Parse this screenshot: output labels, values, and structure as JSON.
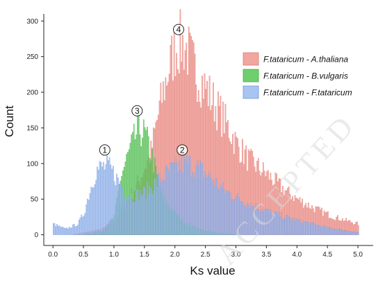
{
  "chart_data": {
    "type": "bar",
    "title": "",
    "xlabel": "Ks value",
    "ylabel": "Count",
    "xlim": [
      -0.15,
      5.25
    ],
    "ylim": [
      -15,
      310
    ],
    "xticks": [
      0.0,
      0.5,
      1.0,
      1.5,
      2.0,
      2.5,
      3.0,
      3.5,
      4.0,
      4.5,
      5.0
    ],
    "xtick_labels": [
      "0.0",
      "0.5",
      "1.0",
      "1.5",
      "2.0",
      "2.5",
      "3.0",
      "3.5",
      "4.0",
      "4.5",
      "5.0"
    ],
    "yticks": [
      0,
      50,
      100,
      150,
      200,
      250,
      300
    ],
    "ytick_labels": [
      "0",
      "50",
      "100",
      "150",
      "200",
      "250",
      "300"
    ],
    "grid": false,
    "legend_placement": "top-right",
    "bin_width": 0.02,
    "series": [
      {
        "name": "F.tataricum -  A.thaliana",
        "color": "#f2a6a0",
        "edge": "#e07a72",
        "profile": [
          [
            0.0,
            0
          ],
          [
            0.3,
            0
          ],
          [
            0.5,
            3
          ],
          [
            0.8,
            8
          ],
          [
            1.0,
            20
          ],
          [
            1.2,
            45
          ],
          [
            1.4,
            75
          ],
          [
            1.6,
            115
          ],
          [
            1.7,
            160
          ],
          [
            1.8,
            200
          ],
          [
            1.9,
            235
          ],
          [
            2.0,
            262
          ],
          [
            2.1,
            270
          ],
          [
            2.2,
            258
          ],
          [
            2.3,
            235
          ],
          [
            2.5,
            205
          ],
          [
            2.7,
            175
          ],
          [
            2.9,
            145
          ],
          [
            3.0,
            128
          ],
          [
            3.2,
            105
          ],
          [
            3.5,
            85
          ],
          [
            3.8,
            62
          ],
          [
            4.0,
            50
          ],
          [
            4.3,
            36
          ],
          [
            4.6,
            25
          ],
          [
            5.0,
            15
          ]
        ]
      },
      {
        "name": "F.tataricum -  B.vulgaris",
        "color": "#6fcf6f",
        "edge": "#3fae3f",
        "profile": [
          [
            0.5,
            0
          ],
          [
            0.8,
            5
          ],
          [
            1.0,
            25
          ],
          [
            1.1,
            80
          ],
          [
            1.2,
            105
          ],
          [
            1.3,
            128
          ],
          [
            1.4,
            150
          ],
          [
            1.5,
            140
          ],
          [
            1.6,
            115
          ],
          [
            1.7,
            80
          ],
          [
            1.8,
            50
          ],
          [
            2.0,
            30
          ],
          [
            2.2,
            15
          ],
          [
            2.5,
            5
          ],
          [
            3.0,
            0
          ]
        ]
      },
      {
        "name": "F.tataricum -  F.tataricum",
        "color": "#a9c4f0",
        "edge": "#6f96de",
        "profile": [
          [
            0.0,
            15
          ],
          [
            0.2,
            8
          ],
          [
            0.4,
            15
          ],
          [
            0.5,
            30
          ],
          [
            0.6,
            62
          ],
          [
            0.7,
            90
          ],
          [
            0.8,
            95
          ],
          [
            0.9,
            95
          ],
          [
            1.0,
            85
          ],
          [
            1.1,
            70
          ],
          [
            1.2,
            58
          ],
          [
            1.3,
            55
          ],
          [
            1.5,
            60
          ],
          [
            1.7,
            75
          ],
          [
            1.9,
            88
          ],
          [
            2.1,
            98
          ],
          [
            2.2,
            100
          ],
          [
            2.4,
            92
          ],
          [
            2.6,
            78
          ],
          [
            2.8,
            62
          ],
          [
            3.0,
            52
          ],
          [
            3.3,
            40
          ],
          [
            3.6,
            30
          ],
          [
            4.0,
            20
          ],
          [
            4.5,
            10
          ],
          [
            5.0,
            3
          ]
        ]
      }
    ],
    "annotations": [
      {
        "label": "1",
        "x": 0.85,
        "y": 119
      },
      {
        "label": "2",
        "x": 2.12,
        "y": 119
      },
      {
        "label": "3",
        "x": 1.38,
        "y": 174
      },
      {
        "label": "4",
        "x": 2.06,
        "y": 288
      }
    ]
  },
  "watermark": {
    "text": "ACCEPTED"
  }
}
